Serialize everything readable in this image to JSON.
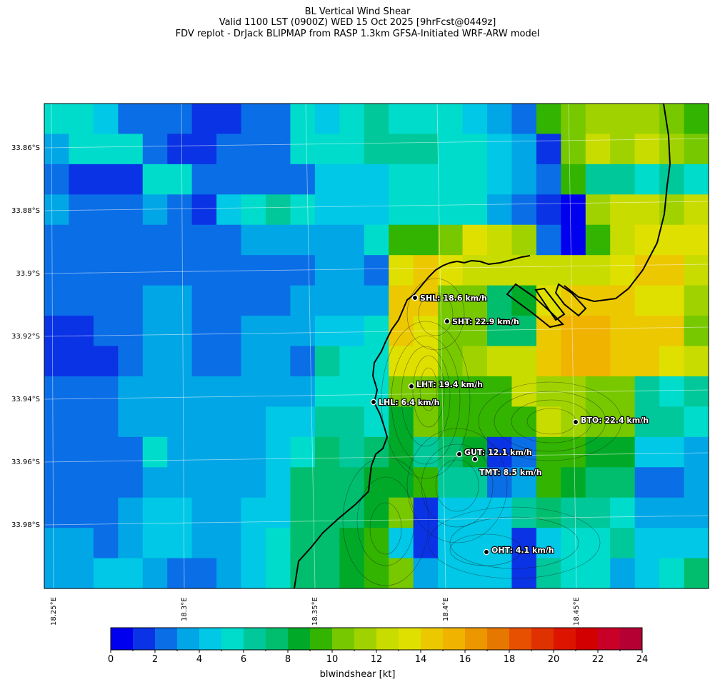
{
  "title": {
    "line1": "BL Vertical Wind Shear",
    "line2": "Valid 1100 LST (0900Z) WED 15 Oct 2025 [9hrFcst@0449z]",
    "line3": "FDV replot - DrJack BLIPMAP from RASP 1.3km GFSA-Initiated WRF-ARW model"
  },
  "axes": {
    "lat_labels": [
      "33.86°S",
      "33.88°S",
      "33.9°S",
      "33.92°S",
      "33.94°S",
      "33.96°S",
      "33.98°S"
    ],
    "lon_labels": [
      "18.25°E",
      "18.3°E",
      "18.35°E",
      "18.4°E",
      "18.45°E"
    ]
  },
  "colorbar": {
    "label": "blwindshear [kt]",
    "ticks": [
      "0",
      "2",
      "4",
      "6",
      "8",
      "10",
      "12",
      "14",
      "16",
      "18",
      "20",
      "22",
      "24"
    ],
    "colors": [
      "#0000ee",
      "#0a33e6",
      "#0a6ee6",
      "#00a6e6",
      "#00c8e6",
      "#00dccc",
      "#00c89a",
      "#00be6e",
      "#00aa28",
      "#32b400",
      "#78c800",
      "#a0d200",
      "#c8dc00",
      "#e0e000",
      "#ecc800",
      "#f0b400",
      "#ec9600",
      "#e67800",
      "#e65000",
      "#e03200",
      "#dc1400",
      "#d20000",
      "#c80028",
      "#b40032"
    ]
  },
  "grid_values": [
    [
      5,
      5,
      4,
      2,
      2,
      2,
      1,
      1,
      2,
      2,
      5,
      4,
      5,
      6,
      5,
      5,
      5,
      4,
      3,
      2,
      9,
      10,
      11,
      11,
      11,
      10,
      9
    ],
    [
      3,
      5,
      5,
      5,
      2,
      1,
      1,
      2,
      2,
      2,
      5,
      5,
      5,
      6,
      6,
      6,
      5,
      5,
      4,
      3,
      1,
      10,
      12,
      11,
      12,
      11,
      10
    ],
    [
      2,
      1,
      1,
      1,
      5,
      5,
      2,
      2,
      2,
      2,
      2,
      4,
      4,
      4,
      5,
      5,
      5,
      5,
      4,
      3,
      2,
      9,
      6,
      6,
      5,
      6,
      5
    ],
    [
      3,
      2,
      2,
      2,
      3,
      2,
      1,
      4,
      5,
      6,
      5,
      4,
      4,
      4,
      5,
      5,
      5,
      5,
      3,
      2,
      1,
      0,
      11,
      12,
      12,
      11,
      12
    ],
    [
      2,
      2,
      2,
      2,
      2,
      2,
      2,
      2,
      3,
      3,
      3,
      3,
      3,
      5,
      9,
      9,
      10,
      13,
      12,
      11,
      2,
      0,
      9,
      12,
      13,
      13,
      13
    ],
    [
      2,
      2,
      2,
      2,
      2,
      2,
      2,
      2,
      2,
      2,
      2,
      3,
      3,
      2,
      13,
      14,
      13,
      12,
      12,
      12,
      12,
      12,
      12,
      13,
      14,
      14,
      12
    ],
    [
      2,
      2,
      2,
      2,
      3,
      3,
      2,
      2,
      2,
      2,
      3,
      3,
      3,
      3,
      14,
      14,
      10,
      10,
      7,
      8,
      13,
      14,
      14,
      14,
      13,
      13,
      11
    ],
    [
      1,
      1,
      2,
      2,
      3,
      3,
      2,
      2,
      3,
      3,
      3,
      4,
      4,
      5,
      14,
      13,
      10,
      10,
      7,
      7,
      14,
      15,
      15,
      14,
      14,
      14,
      10
    ],
    [
      1,
      1,
      1,
      2,
      3,
      3,
      2,
      2,
      3,
      3,
      2,
      6,
      5,
      5,
      13,
      13,
      10,
      11,
      12,
      12,
      14,
      15,
      15,
      14,
      14,
      13,
      12
    ],
    [
      2,
      2,
      2,
      3,
      3,
      3,
      3,
      3,
      3,
      3,
      3,
      5,
      5,
      5,
      10,
      10,
      9,
      9,
      9,
      12,
      11,
      11,
      10,
      10,
      6,
      5,
      6
    ],
    [
      2,
      2,
      2,
      3,
      3,
      3,
      3,
      3,
      3,
      4,
      4,
      6,
      6,
      5,
      8,
      10,
      9,
      9,
      9,
      9,
      12,
      11,
      10,
      10,
      6,
      6,
      5
    ],
    [
      2,
      2,
      2,
      2,
      5,
      3,
      3,
      3,
      3,
      4,
      5,
      7,
      6,
      7,
      8,
      6,
      7,
      8,
      1,
      2,
      9,
      9,
      8,
      8,
      4,
      4,
      3
    ],
    [
      2,
      2,
      2,
      2,
      3,
      3,
      3,
      3,
      3,
      4,
      7,
      7,
      7,
      8,
      8,
      9,
      6,
      6,
      2,
      3,
      9,
      8,
      7,
      7,
      2,
      2,
      3
    ],
    [
      2,
      2,
      2,
      3,
      4,
      4,
      3,
      3,
      4,
      4,
      7,
      7,
      7,
      8,
      10,
      1,
      4,
      4,
      4,
      6,
      7,
      6,
      6,
      5,
      3,
      3,
      3
    ],
    [
      3,
      3,
      2,
      3,
      4,
      4,
      3,
      3,
      4,
      5,
      7,
      7,
      8,
      9,
      4,
      1,
      4,
      4,
      4,
      1,
      4,
      5,
      5,
      6,
      4,
      4,
      4
    ],
    [
      3,
      3,
      4,
      4,
      3,
      2,
      2,
      3,
      4,
      5,
      7,
      7,
      8,
      9,
      10,
      3,
      4,
      4,
      4,
      1,
      6,
      5,
      5,
      3,
      4,
      5,
      7
    ]
  ],
  "stations": [
    {
      "label": "SHL: 18.6 km/h"
    },
    {
      "label": "SHT: 22.9 km/h"
    },
    {
      "label": "LHT: 19.4 km/h"
    },
    {
      "label": "LHL: 6.4 km/h"
    },
    {
      "label": "BTO: 22.4 km/h"
    },
    {
      "label": "GUT: 12.1 km/h"
    },
    {
      "label": "TMT: 8.5 km/h"
    },
    {
      "label": "OHT: 4.1 km/h"
    }
  ]
}
